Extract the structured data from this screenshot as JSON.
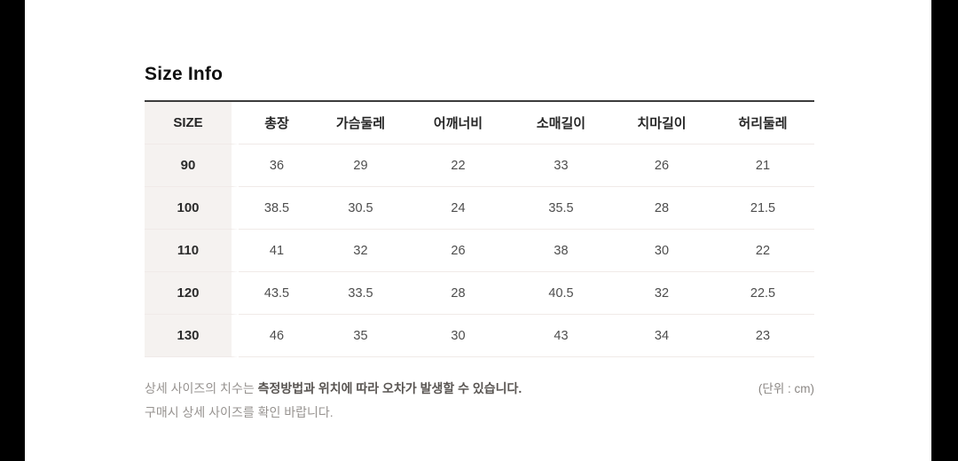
{
  "header": {
    "title": "Size Info"
  },
  "table": {
    "columns": [
      "SIZE",
      "총장",
      "가슴둘레",
      "어깨너비",
      "소매길이",
      "치마길이",
      "허리둘레"
    ],
    "rows": [
      {
        "size": "90",
        "values": [
          "36",
          "29",
          "22",
          "33",
          "26",
          "21"
        ]
      },
      {
        "size": "100",
        "values": [
          "38.5",
          "30.5",
          "24",
          "35.5",
          "28",
          "21.5"
        ]
      },
      {
        "size": "110",
        "values": [
          "41",
          "32",
          "26",
          "38",
          "30",
          "22"
        ]
      },
      {
        "size": "120",
        "values": [
          "43.5",
          "33.5",
          "28",
          "40.5",
          "32",
          "22.5"
        ]
      },
      {
        "size": "130",
        "values": [
          "46",
          "35",
          "30",
          "43",
          "34",
          "23"
        ]
      }
    ]
  },
  "footer": {
    "note_line1_normal": "상세 사이즈의 치수는 ",
    "note_line1_bold": "측정방법과 위치에 따라 오차가 발생할 수 있습니다.",
    "note_line2": "구매시 상세 사이즈를 확인 바랍니다.",
    "unit_label": "(단위 : cm)"
  },
  "colors": {
    "letterbox": "#000000",
    "table_top_border": "#3c3c3c",
    "size_column_bg": "#f5f2f0",
    "row_divider": "#f0eae8"
  }
}
